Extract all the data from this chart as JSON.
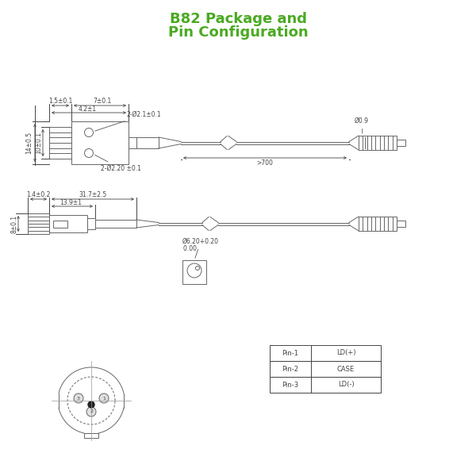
{
  "title_line1": "B82 Package and",
  "title_line2": "Pin Configuration",
  "title_color": "#4aaa22",
  "bg_color": "#ffffff",
  "line_color": "#666666",
  "dim_color": "#444444",
  "dim_fontsize": 5.5,
  "title_fontsize": 13,
  "pin_table": {
    "pins": [
      "Pin-1",
      "Pin-2",
      "Pin-3"
    ],
    "labels": [
      "LD(+)",
      "CASE",
      "LD(-)"
    ]
  },
  "top_dims": {
    "d1": "1.5±0.1",
    "d2": "7±0.1",
    "d3": "4.2±1",
    "d4": "2-Ø2.1±0.1",
    "d5": "14±0.5",
    "d6": "10±0.1",
    "d7": "2-Ø2.20 ±0.1",
    "d8": ">700",
    "d9": "Ø0.9"
  },
  "bot_dims": {
    "d1": "31.7±2.5",
    "d2": "13.9±1",
    "d3": "1.4±0.2",
    "d4": "8±0.1",
    "d5_line1": "Ø6.20+0.20",
    "d5_line2": "        0.00"
  }
}
